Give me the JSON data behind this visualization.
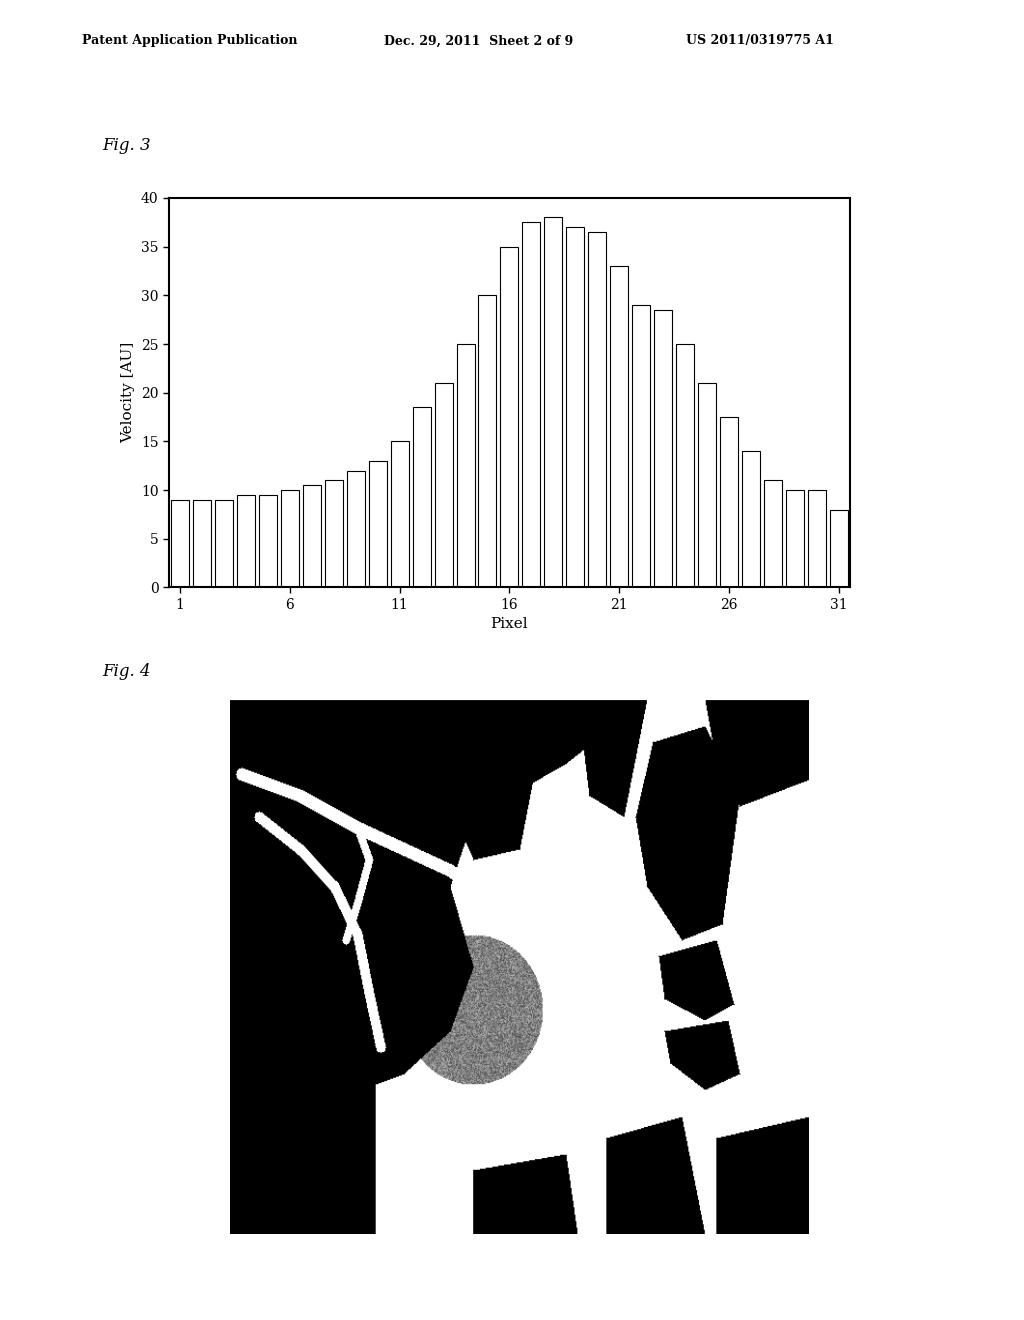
{
  "header_left": "Patent Application Publication",
  "header_mid": "Dec. 29, 2011  Sheet 2 of 9",
  "header_right": "US 2011/0319775 A1",
  "fig3_label": "Fig. 3",
  "fig4_label": "Fig. 4",
  "bar_values": [
    9,
    9,
    9,
    9.5,
    9.5,
    10,
    10.5,
    11,
    12,
    13,
    15,
    18.5,
    21,
    25,
    30,
    35,
    37.5,
    38,
    37,
    36.5,
    33,
    29,
    28.5,
    25,
    21,
    17.5,
    14,
    11,
    10,
    10,
    8
  ],
  "xlabel": "Pixel",
  "ylabel": "Velocity [AU]",
  "xticks": [
    1,
    6,
    11,
    16,
    21,
    26,
    31
  ],
  "yticks": [
    0,
    5,
    10,
    15,
    20,
    25,
    30,
    35,
    40
  ],
  "xlim": [
    0.5,
    31.5
  ],
  "ylim": [
    0,
    40
  ],
  "bar_color": "white",
  "bar_edgecolor": "black",
  "bg_color": "white",
  "page_bg": "white",
  "header_fontsize": 9,
  "label_fontsize": 12,
  "axis_fontsize": 10
}
